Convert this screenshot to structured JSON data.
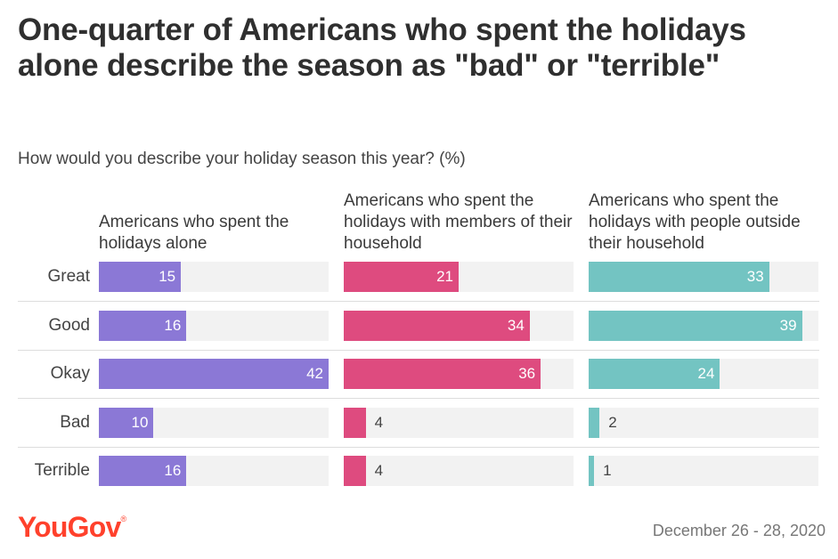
{
  "title": "One-quarter of Americans who spent the holidays alone describe the season as \"bad\" or \"terrible\"",
  "subtitle": "How would you describe your holiday season this year? (%)",
  "footer": {
    "logo": "YouGov",
    "date": "December 26 - 28, 2020"
  },
  "chart_data": {
    "type": "bar",
    "orientation": "horizontal",
    "title": "How would you describe your holiday season this year? (%)",
    "categories": [
      "Great",
      "Good",
      "Okay",
      "Bad",
      "Terrible"
    ],
    "xlim": [
      0,
      42
    ],
    "series": [
      {
        "name": "Americans who spent the holidays alone",
        "color": "#8b78d6",
        "values": [
          15,
          16,
          42,
          10,
          16
        ]
      },
      {
        "name": "Americans who spent the holidays with members of their household",
        "color": "#de4b7f",
        "values": [
          21,
          34,
          36,
          4,
          4
        ]
      },
      {
        "name": "Americans who spent the holidays with people outside their household",
        "color": "#73c4c2",
        "values": [
          33,
          39,
          24,
          2,
          1
        ]
      }
    ]
  }
}
